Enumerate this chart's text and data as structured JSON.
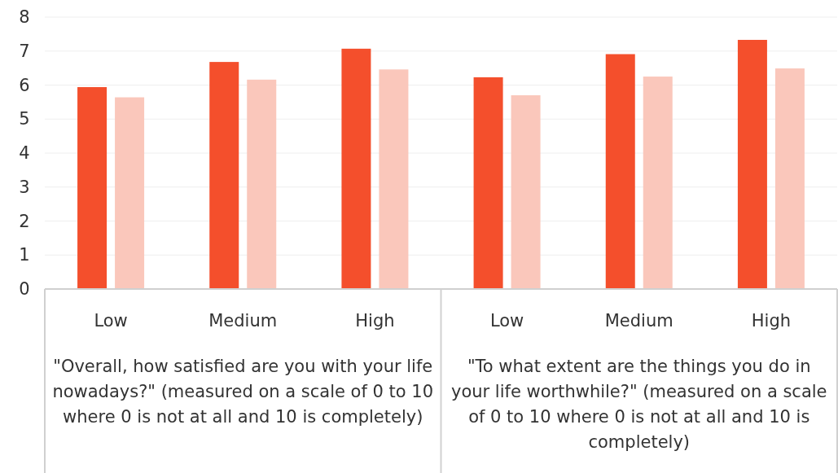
{
  "chart_data": {
    "type": "bar",
    "categories": [
      "Low",
      "Medium",
      "High",
      "Low",
      "Medium",
      "High"
    ],
    "series": [
      {
        "color": "#f44f2c",
        "values": [
          5.94,
          6.68,
          7.07,
          6.23,
          6.91,
          7.33
        ]
      },
      {
        "color": "#fac7bb",
        "values": [
          5.64,
          6.16,
          6.46,
          5.7,
          6.25,
          6.49
        ]
      }
    ],
    "ylim": [
      0,
      8
    ],
    "yticks": [
      0,
      1,
      2,
      3,
      4,
      5,
      6,
      7,
      8
    ],
    "grid": "y",
    "annotations": [
      "\"Overall, how satisfied are you with your life nowadays?\" (measured on a scale of 0 to 10 where 0 is not at all and 10 is completely)",
      "\"To what extent are the things you do in your life worthwhile?\" (measured on a scale of 0 to 10 where 0 is not at all and 10 is completely)"
    ]
  }
}
